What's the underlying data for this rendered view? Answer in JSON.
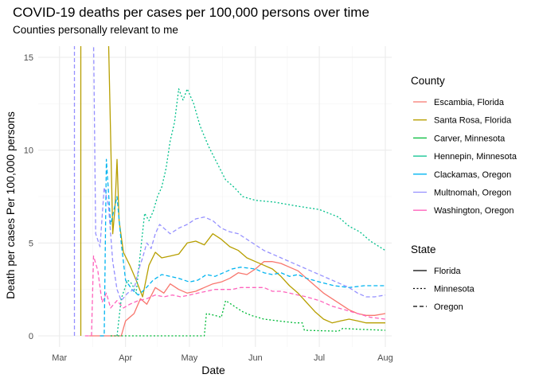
{
  "chart_data": {
    "type": "line",
    "title": "COVID-19 deaths per cases per 100,000 persons over time",
    "subtitle": "Counties personally relevant to me",
    "xlabel": "Date",
    "ylabel": "Death per cases Per 100,000 persons",
    "x_ticks": [
      "Mar",
      "Apr",
      "May",
      "Jun",
      "Jul",
      "Aug"
    ],
    "x_tick_dates": [
      "2020-03-01",
      "2020-04-01",
      "2020-05-01",
      "2020-06-01",
      "2020-07-01",
      "2020-08-01"
    ],
    "xlim": [
      "2020-02-20",
      "2020-08-04"
    ],
    "y_ticks": [
      0,
      5,
      10,
      15
    ],
    "ylim": [
      -0.6,
      15.6
    ],
    "grid": true,
    "legend_position": "right",
    "color_legend_title": "County",
    "linetype_legend_title": "State",
    "linetype_legend": [
      {
        "label": "Florida",
        "dash": "solid"
      },
      {
        "label": "Minnesota",
        "dash": "dotted"
      },
      {
        "label": "Oregon",
        "dash": "dashed"
      }
    ],
    "series": [
      {
        "name": "Escambia, Florida",
        "state": "Florida",
        "color": "#F8766D",
        "points": [
          [
            "2020-03-15",
            0
          ],
          [
            "2020-03-30",
            0
          ],
          [
            "2020-04-01",
            0.8
          ],
          [
            "2020-04-05",
            1.2
          ],
          [
            "2020-04-08",
            2.0
          ],
          [
            "2020-04-11",
            1.7
          ],
          [
            "2020-04-15",
            2.6
          ],
          [
            "2020-04-19",
            2.3
          ],
          [
            "2020-04-22",
            2.8
          ],
          [
            "2020-04-26",
            2.5
          ],
          [
            "2020-04-30",
            2.3
          ],
          [
            "2020-05-04",
            2.4
          ],
          [
            "2020-05-08",
            2.6
          ],
          [
            "2020-05-12",
            2.8
          ],
          [
            "2020-05-16",
            2.9
          ],
          [
            "2020-05-20",
            3.1
          ],
          [
            "2020-05-24",
            3.4
          ],
          [
            "2020-05-28",
            3.3
          ],
          [
            "2020-06-01",
            3.6
          ],
          [
            "2020-06-05",
            4.0
          ],
          [
            "2020-06-09",
            4.0
          ],
          [
            "2020-06-13",
            3.9
          ],
          [
            "2020-06-17",
            3.7
          ],
          [
            "2020-06-21",
            3.5
          ],
          [
            "2020-06-25",
            3.1
          ],
          [
            "2020-06-29",
            2.7
          ],
          [
            "2020-07-03",
            2.3
          ],
          [
            "2020-07-07",
            2.0
          ],
          [
            "2020-07-11",
            1.7
          ],
          [
            "2020-07-15",
            1.4
          ],
          [
            "2020-07-19",
            1.2
          ],
          [
            "2020-07-23",
            1.1
          ],
          [
            "2020-07-27",
            1.1
          ],
          [
            "2020-08-01",
            1.2
          ]
        ]
      },
      {
        "name": "Santa Rosa, Florida",
        "state": "Florida",
        "color": "#B79F00",
        "points": [
          [
            "2020-03-11",
            0
          ],
          [
            "2020-03-11",
            16
          ],
          [
            "2020-03-24",
            16
          ],
          [
            "2020-03-26",
            5.5
          ],
          [
            "2020-03-27",
            6.8
          ],
          [
            "2020-03-28",
            9.5
          ],
          [
            "2020-03-29",
            6.2
          ],
          [
            "2020-03-31",
            4.5
          ],
          [
            "2020-04-03",
            3.8
          ],
          [
            "2020-04-06",
            3.0
          ],
          [
            "2020-04-09",
            2.1
          ],
          [
            "2020-04-12",
            3.8
          ],
          [
            "2020-04-15",
            4.5
          ],
          [
            "2020-04-18",
            4.2
          ],
          [
            "2020-04-22",
            4.3
          ],
          [
            "2020-04-26",
            4.4
          ],
          [
            "2020-04-30",
            5.0
          ],
          [
            "2020-05-04",
            5.1
          ],
          [
            "2020-05-08",
            4.9
          ],
          [
            "2020-05-12",
            5.5
          ],
          [
            "2020-05-16",
            5.2
          ],
          [
            "2020-05-20",
            4.8
          ],
          [
            "2020-05-24",
            4.6
          ],
          [
            "2020-05-28",
            4.2
          ],
          [
            "2020-06-01",
            4.0
          ],
          [
            "2020-06-05",
            3.8
          ],
          [
            "2020-06-09",
            3.6
          ],
          [
            "2020-06-13",
            3.2
          ],
          [
            "2020-06-17",
            2.7
          ],
          [
            "2020-06-21",
            2.3
          ],
          [
            "2020-06-25",
            1.8
          ],
          [
            "2020-06-29",
            1.3
          ],
          [
            "2020-07-03",
            0.9
          ],
          [
            "2020-07-07",
            0.7
          ],
          [
            "2020-07-11",
            0.8
          ],
          [
            "2020-07-15",
            0.9
          ],
          [
            "2020-07-19",
            0.8
          ],
          [
            "2020-07-23",
            0.7
          ],
          [
            "2020-07-27",
            0.7
          ],
          [
            "2020-08-01",
            0.7
          ]
        ]
      },
      {
        "name": "Carver, Minnesota",
        "state": "Minnesota",
        "color": "#00BA38",
        "points": [
          [
            "2020-03-25",
            0
          ],
          [
            "2020-05-08",
            0
          ],
          [
            "2020-05-09",
            1.2
          ],
          [
            "2020-05-13",
            1.1
          ],
          [
            "2020-05-16",
            1.0
          ],
          [
            "2020-05-18",
            1.9
          ],
          [
            "2020-05-22",
            1.6
          ],
          [
            "2020-05-26",
            1.3
          ],
          [
            "2020-05-30",
            1.1
          ],
          [
            "2020-06-05",
            0.9
          ],
          [
            "2020-06-12",
            0.8
          ],
          [
            "2020-06-20",
            0.7
          ],
          [
            "2020-06-23",
            0.7
          ],
          [
            "2020-06-24",
            0.3
          ],
          [
            "2020-07-10",
            0.25
          ],
          [
            "2020-07-12",
            0.4
          ],
          [
            "2020-07-20",
            0.35
          ],
          [
            "2020-08-01",
            0.3
          ]
        ]
      },
      {
        "name": "Hennepin, Minnesota",
        "state": "Minnesota",
        "color": "#00C08B",
        "points": [
          [
            "2020-03-28",
            0
          ],
          [
            "2020-03-30",
            2.0
          ],
          [
            "2020-04-02",
            3.0
          ],
          [
            "2020-04-04",
            2.8
          ],
          [
            "2020-04-06",
            2.3
          ],
          [
            "2020-04-08",
            4.5
          ],
          [
            "2020-04-10",
            6.6
          ],
          [
            "2020-04-12",
            6.2
          ],
          [
            "2020-04-14",
            6.7
          ],
          [
            "2020-04-16",
            7.5
          ],
          [
            "2020-04-18",
            8.0
          ],
          [
            "2020-04-20",
            9.0
          ],
          [
            "2020-04-22",
            10.5
          ],
          [
            "2020-04-24",
            11.5
          ],
          [
            "2020-04-26",
            13.3
          ],
          [
            "2020-04-28",
            12.7
          ],
          [
            "2020-04-30",
            13.3
          ],
          [
            "2020-05-03",
            12.5
          ],
          [
            "2020-05-06",
            11.3
          ],
          [
            "2020-05-10",
            10.2
          ],
          [
            "2020-05-14",
            9.3
          ],
          [
            "2020-05-18",
            8.4
          ],
          [
            "2020-05-22",
            8.0
          ],
          [
            "2020-05-26",
            7.5
          ],
          [
            "2020-06-01",
            7.3
          ],
          [
            "2020-06-10",
            7.2
          ],
          [
            "2020-06-20",
            7.0
          ],
          [
            "2020-07-01",
            6.8
          ],
          [
            "2020-07-10",
            6.4
          ],
          [
            "2020-07-15",
            5.9
          ],
          [
            "2020-07-20",
            5.6
          ],
          [
            "2020-07-25",
            5.1
          ],
          [
            "2020-08-01",
            4.6
          ]
        ]
      },
      {
        "name": "Clackamas, Oregon",
        "state": "Oregon",
        "color": "#00B4F0",
        "points": [
          [
            "2020-03-20",
            0
          ],
          [
            "2020-03-22",
            0
          ],
          [
            "2020-03-23",
            9.5
          ],
          [
            "2020-03-25",
            6.0
          ],
          [
            "2020-03-28",
            7.5
          ],
          [
            "2020-03-30",
            5.0
          ],
          [
            "2020-04-01",
            3.0
          ],
          [
            "2020-04-04",
            2.5
          ],
          [
            "2020-04-07",
            2.2
          ],
          [
            "2020-04-10",
            2.5
          ],
          [
            "2020-04-14",
            3.0
          ],
          [
            "2020-04-18",
            3.3
          ],
          [
            "2020-04-22",
            3.2
          ],
          [
            "2020-04-26",
            3.1
          ],
          [
            "2020-05-01",
            2.9
          ],
          [
            "2020-05-05",
            3.0
          ],
          [
            "2020-05-09",
            3.3
          ],
          [
            "2020-05-13",
            3.2
          ],
          [
            "2020-05-17",
            3.4
          ],
          [
            "2020-05-21",
            3.6
          ],
          [
            "2020-05-25",
            3.7
          ],
          [
            "2020-06-01",
            3.6
          ],
          [
            "2020-06-05",
            3.4
          ],
          [
            "2020-06-09",
            3.3
          ],
          [
            "2020-06-13",
            3.4
          ],
          [
            "2020-06-17",
            3.2
          ],
          [
            "2020-06-21",
            3.3
          ],
          [
            "2020-06-25",
            3.1
          ],
          [
            "2020-07-01",
            2.9
          ],
          [
            "2020-07-08",
            2.7
          ],
          [
            "2020-07-15",
            2.6
          ],
          [
            "2020-07-22",
            2.7
          ],
          [
            "2020-08-01",
            2.7
          ]
        ]
      },
      {
        "name": "Multnomah, Oregon",
        "state": "Oregon",
        "color": "#9590FF",
        "points": [
          [
            "2020-03-08",
            0
          ],
          [
            "2020-03-08",
            16
          ],
          [
            "2020-03-17",
            16
          ],
          [
            "2020-03-18",
            5.5
          ],
          [
            "2020-03-20",
            4.8
          ],
          [
            "2020-03-22",
            8.0
          ],
          [
            "2020-03-24",
            7.0
          ],
          [
            "2020-03-26",
            4.0
          ],
          [
            "2020-03-28",
            2.5
          ],
          [
            "2020-03-30",
            1.9
          ],
          [
            "2020-04-02",
            2.3
          ],
          [
            "2020-04-05",
            2.5
          ],
          [
            "2020-04-07",
            3.5
          ],
          [
            "2020-04-09",
            4.2
          ],
          [
            "2020-04-11",
            5.0
          ],
          [
            "2020-04-13",
            4.7
          ],
          [
            "2020-04-15",
            5.5
          ],
          [
            "2020-04-17",
            6.0
          ],
          [
            "2020-04-19",
            5.8
          ],
          [
            "2020-04-22",
            5.5
          ],
          [
            "2020-04-26",
            5.8
          ],
          [
            "2020-04-30",
            6.0
          ],
          [
            "2020-05-04",
            6.3
          ],
          [
            "2020-05-08",
            6.4
          ],
          [
            "2020-05-12",
            6.2
          ],
          [
            "2020-05-16",
            5.8
          ],
          [
            "2020-05-20",
            5.6
          ],
          [
            "2020-05-24",
            5.5
          ],
          [
            "2020-05-28",
            5.2
          ],
          [
            "2020-06-01",
            4.9
          ],
          [
            "2020-06-05",
            4.6
          ],
          [
            "2020-06-09",
            4.4
          ],
          [
            "2020-06-13",
            4.2
          ],
          [
            "2020-06-17",
            4.0
          ],
          [
            "2020-06-21",
            3.8
          ],
          [
            "2020-06-25",
            3.6
          ],
          [
            "2020-06-29",
            3.4
          ],
          [
            "2020-07-03",
            3.2
          ],
          [
            "2020-07-07",
            3.0
          ],
          [
            "2020-07-11",
            2.8
          ],
          [
            "2020-07-15",
            2.6
          ],
          [
            "2020-07-19",
            2.3
          ],
          [
            "2020-07-23",
            2.1
          ],
          [
            "2020-07-27",
            2.1
          ],
          [
            "2020-08-01",
            2.2
          ]
        ]
      },
      {
        "name": "Washington, Oregon",
        "state": "Oregon",
        "color": "#FF62BC",
        "points": [
          [
            "2020-03-13",
            0
          ],
          [
            "2020-03-16",
            0
          ],
          [
            "2020-03-17",
            4.3
          ],
          [
            "2020-03-19",
            3.5
          ],
          [
            "2020-03-21",
            1.8
          ],
          [
            "2020-03-23",
            2.3
          ],
          [
            "2020-03-25",
            1.5
          ],
          [
            "2020-03-28",
            1.9
          ],
          [
            "2020-03-31",
            1.5
          ],
          [
            "2020-04-03",
            1.7
          ],
          [
            "2020-04-07",
            1.9
          ],
          [
            "2020-04-11",
            2.0
          ],
          [
            "2020-04-15",
            2.2
          ],
          [
            "2020-04-19",
            2.1
          ],
          [
            "2020-04-23",
            2.2
          ],
          [
            "2020-04-27",
            2.1
          ],
          [
            "2020-05-01",
            2.2
          ],
          [
            "2020-05-05",
            2.3
          ],
          [
            "2020-05-09",
            2.4
          ],
          [
            "2020-05-13",
            2.5
          ],
          [
            "2020-05-17",
            2.5
          ],
          [
            "2020-05-21",
            2.5
          ],
          [
            "2020-05-25",
            2.6
          ],
          [
            "2020-06-01",
            2.6
          ],
          [
            "2020-06-05",
            2.6
          ],
          [
            "2020-06-09",
            2.4
          ],
          [
            "2020-06-13",
            2.4
          ],
          [
            "2020-06-17",
            2.3
          ],
          [
            "2020-06-21",
            2.2
          ],
          [
            "2020-06-25",
            2.1
          ],
          [
            "2020-07-01",
            1.9
          ],
          [
            "2020-07-07",
            1.6
          ],
          [
            "2020-07-13",
            1.4
          ],
          [
            "2020-07-19",
            1.2
          ],
          [
            "2020-07-25",
            1.0
          ],
          [
            "2020-08-01",
            0.9
          ]
        ]
      }
    ]
  }
}
